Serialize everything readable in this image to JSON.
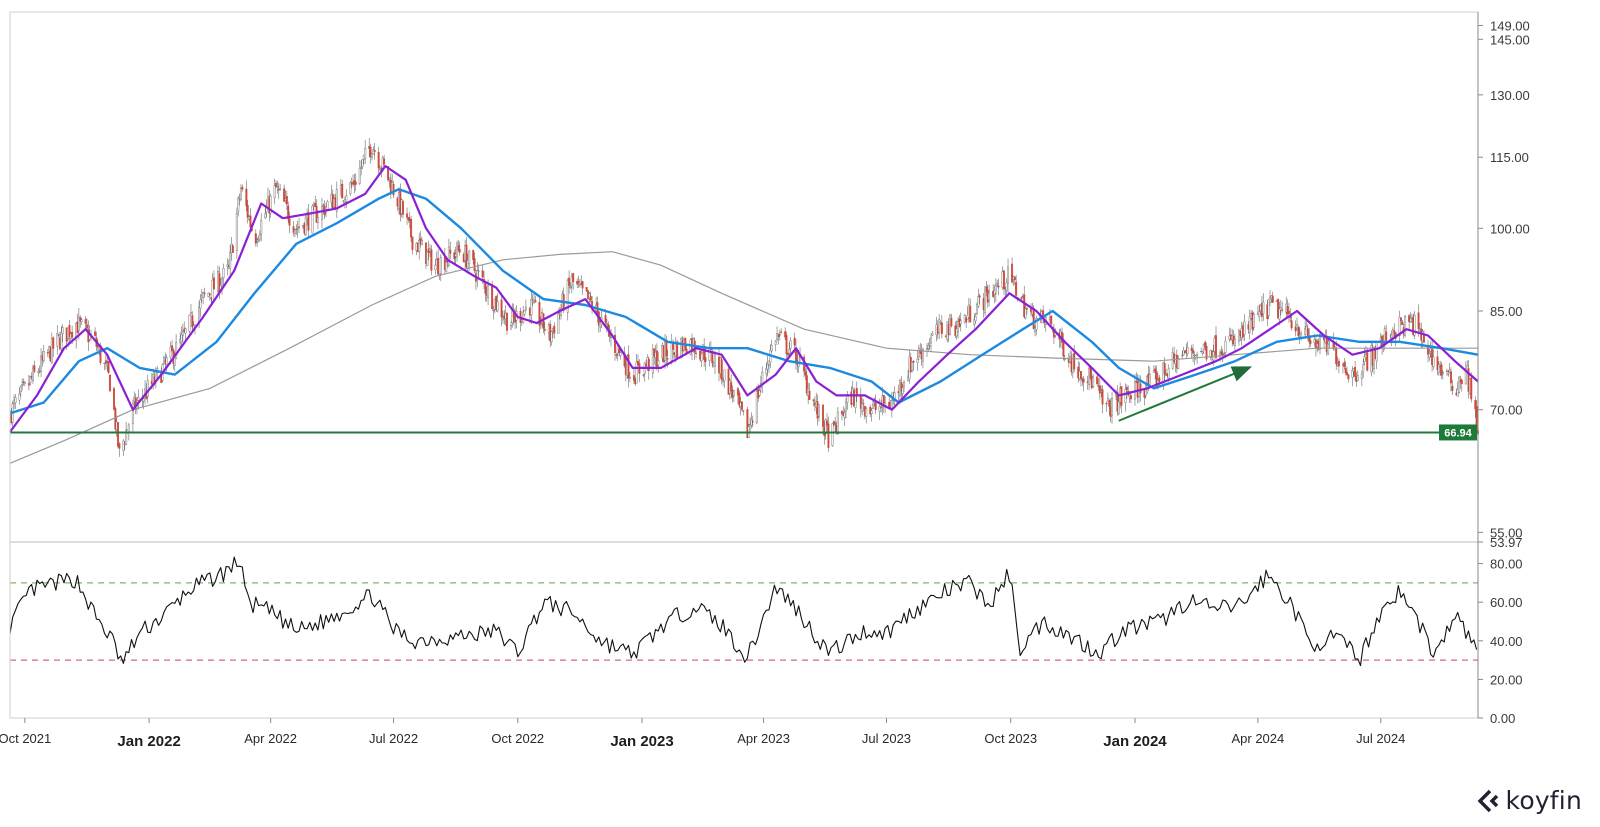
{
  "brand": {
    "name": "koyfin",
    "logo_icon": "koyfin-chevron-icon"
  },
  "colors": {
    "up_candle": "#f2f2f2",
    "down_candle": "#d04a3a",
    "wick": "#6a6a6a",
    "ma_fast": "#8b1fd3",
    "ma_mid": "#1c8ae0",
    "ma_slow": "#9a9a9a",
    "support": "#1f7a3a",
    "rsi": "#111111",
    "rsi_overbought": "#7cb86b",
    "rsi_oversold": "#d66a7c"
  },
  "chart_data": [
    {
      "type": "candlestick",
      "panel": "price",
      "scale": "log",
      "ylim": [
        53.97,
        153
      ],
      "y_ticks": [
        "149.00",
        "145.00",
        "130.00",
        "115.00",
        "100.00",
        "85.00",
        "70.00",
        "55.00",
        "53.97"
      ],
      "x_start": "2021-09-20",
      "x_end": "2024-09-11",
      "x_ticks": [
        {
          "label": "Oct 2021",
          "date": "2021-10-01",
          "major": false
        },
        {
          "label": "Jan 2022",
          "date": "2022-01-01",
          "major": true
        },
        {
          "label": "Apr 2022",
          "date": "2022-04-01",
          "major": false
        },
        {
          "label": "Jul 2022",
          "date": "2022-07-01",
          "major": false
        },
        {
          "label": "Oct 2022",
          "date": "2022-10-01",
          "major": false
        },
        {
          "label": "Jan 2023",
          "date": "2023-01-01",
          "major": true
        },
        {
          "label": "Apr 2023",
          "date": "2023-04-01",
          "major": false
        },
        {
          "label": "Jul 2023",
          "date": "2023-07-01",
          "major": false
        },
        {
          "label": "Oct 2023",
          "date": "2023-10-01",
          "major": false
        },
        {
          "label": "Jan 2024",
          "date": "2024-01-01",
          "major": true
        },
        {
          "label": "Apr 2024",
          "date": "2024-04-01",
          "major": false
        },
        {
          "label": "Jul 2024",
          "date": "2024-07-01",
          "major": false
        }
      ],
      "close_path": [
        [
          "2021-09-20",
          69.5
        ],
        [
          "2021-10-05",
          74
        ],
        [
          "2021-10-25",
          80
        ],
        [
          "2021-11-08",
          83
        ],
        [
          "2021-11-22",
          80
        ],
        [
          "2021-12-03",
          74
        ],
        [
          "2021-12-10",
          64
        ],
        [
          "2021-12-20",
          70
        ],
        [
          "2022-01-05",
          74
        ],
        [
          "2022-01-25",
          80
        ],
        [
          "2022-02-10",
          87
        ],
        [
          "2022-03-01",
          92
        ],
        [
          "2022-03-10",
          108
        ],
        [
          "2022-03-20",
          98
        ],
        [
          "2022-04-05",
          108
        ],
        [
          "2022-04-20",
          100
        ],
        [
          "2022-05-10",
          104
        ],
        [
          "2022-06-01",
          109
        ],
        [
          "2022-06-15",
          118
        ],
        [
          "2022-07-01",
          108
        ],
        [
          "2022-07-15",
          98
        ],
        [
          "2022-08-01",
          93
        ],
        [
          "2022-08-20",
          96
        ],
        [
          "2022-09-10",
          88
        ],
        [
          "2022-09-25",
          83
        ],
        [
          "2022-10-10",
          86
        ],
        [
          "2022-10-25",
          81
        ],
        [
          "2022-11-10",
          90
        ],
        [
          "2022-11-25",
          86
        ],
        [
          "2022-12-10",
          80
        ],
        [
          "2022-12-25",
          75
        ],
        [
          "2023-01-15",
          78
        ],
        [
          "2023-02-05",
          80
        ],
        [
          "2023-02-25",
          77
        ],
        [
          "2023-03-10",
          72
        ],
        [
          "2023-03-20",
          67
        ],
        [
          "2023-04-10",
          81
        ],
        [
          "2023-04-25",
          78
        ],
        [
          "2023-05-10",
          70
        ],
        [
          "2023-05-20",
          66
        ],
        [
          "2023-06-05",
          72
        ],
        [
          "2023-06-20",
          70
        ],
        [
          "2023-07-05",
          71
        ],
        [
          "2023-07-20",
          77
        ],
        [
          "2023-08-10",
          82
        ],
        [
          "2023-08-25",
          83
        ],
        [
          "2023-09-15",
          88
        ],
        [
          "2023-09-30",
          91
        ],
        [
          "2023-10-15",
          84
        ],
        [
          "2023-10-30",
          83
        ],
        [
          "2023-11-15",
          77
        ],
        [
          "2023-12-01",
          74
        ],
        [
          "2023-12-10",
          70
        ],
        [
          "2023-12-25",
          72
        ],
        [
          "2024-01-15",
          74
        ],
        [
          "2024-02-05",
          78
        ],
        [
          "2024-02-25",
          79
        ],
        [
          "2024-03-15",
          80
        ],
        [
          "2024-04-10",
          86
        ],
        [
          "2024-04-25",
          84
        ],
        [
          "2024-05-10",
          80
        ],
        [
          "2024-05-25",
          79
        ],
        [
          "2024-06-10",
          75
        ],
        [
          "2024-06-25",
          78
        ],
        [
          "2024-07-10",
          82
        ],
        [
          "2024-07-25",
          83
        ],
        [
          "2024-08-10",
          77
        ],
        [
          "2024-08-25",
          73
        ],
        [
          "2024-09-02",
          76
        ],
        [
          "2024-09-11",
          67
        ]
      ],
      "ma_fast": [
        [
          "2021-09-20",
          67
        ],
        [
          "2021-10-10",
          72
        ],
        [
          "2021-10-30",
          79
        ],
        [
          "2021-11-15",
          82
        ],
        [
          "2021-12-01",
          78
        ],
        [
          "2021-12-20",
          70
        ],
        [
          "2022-01-10",
          75
        ],
        [
          "2022-02-10",
          84
        ],
        [
          "2022-03-05",
          92
        ],
        [
          "2022-03-25",
          105
        ],
        [
          "2022-04-10",
          102
        ],
        [
          "2022-05-01",
          103
        ],
        [
          "2022-05-20",
          104
        ],
        [
          "2022-06-10",
          107
        ],
        [
          "2022-06-25",
          113
        ],
        [
          "2022-07-10",
          110
        ],
        [
          "2022-07-25",
          100
        ],
        [
          "2022-08-10",
          94
        ],
        [
          "2022-08-30",
          91
        ],
        [
          "2022-09-15",
          89
        ],
        [
          "2022-10-01",
          84
        ],
        [
          "2022-10-15",
          83
        ],
        [
          "2022-11-01",
          85
        ],
        [
          "2022-11-20",
          87
        ],
        [
          "2022-12-10",
          81
        ],
        [
          "2022-12-25",
          76
        ],
        [
          "2023-01-15",
          76
        ],
        [
          "2023-02-10",
          79
        ],
        [
          "2023-03-01",
          78
        ],
        [
          "2023-03-20",
          72
        ],
        [
          "2023-04-10",
          75
        ],
        [
          "2023-04-25",
          79
        ],
        [
          "2023-05-10",
          74
        ],
        [
          "2023-05-25",
          72
        ],
        [
          "2023-06-15",
          72
        ],
        [
          "2023-07-05",
          70
        ],
        [
          "2023-07-25",
          74
        ],
        [
          "2023-08-15",
          78
        ],
        [
          "2023-09-05",
          82
        ],
        [
          "2023-09-30",
          88
        ],
        [
          "2023-10-20",
          85
        ],
        [
          "2023-11-10",
          80
        ],
        [
          "2023-11-30",
          76
        ],
        [
          "2023-12-20",
          72
        ],
        [
          "2024-01-10",
          73
        ],
        [
          "2024-02-05",
          75
        ],
        [
          "2024-03-01",
          77
        ],
        [
          "2024-03-20",
          79
        ],
        [
          "2024-04-10",
          82
        ],
        [
          "2024-04-30",
          85
        ],
        [
          "2024-05-20",
          81
        ],
        [
          "2024-06-10",
          78
        ],
        [
          "2024-06-30",
          79
        ],
        [
          "2024-07-20",
          82
        ],
        [
          "2024-08-05",
          81
        ],
        [
          "2024-08-25",
          77
        ],
        [
          "2024-09-11",
          74
        ]
      ],
      "ma_mid": [
        [
          "2021-09-20",
          69.5
        ],
        [
          "2021-10-15",
          71
        ],
        [
          "2021-11-10",
          77
        ],
        [
          "2021-12-01",
          79
        ],
        [
          "2021-12-25",
          76
        ],
        [
          "2022-01-20",
          75
        ],
        [
          "2022-02-20",
          80
        ],
        [
          "2022-03-20",
          88
        ],
        [
          "2022-04-20",
          97
        ],
        [
          "2022-05-20",
          101
        ],
        [
          "2022-06-20",
          106
        ],
        [
          "2022-07-05",
          108
        ],
        [
          "2022-07-25",
          106
        ],
        [
          "2022-08-20",
          100
        ],
        [
          "2022-09-20",
          92
        ],
        [
          "2022-10-20",
          87
        ],
        [
          "2022-11-20",
          86
        ],
        [
          "2022-12-20",
          84
        ],
        [
          "2023-01-20",
          80
        ],
        [
          "2023-02-20",
          79
        ],
        [
          "2023-03-20",
          79
        ],
        [
          "2023-04-20",
          77
        ],
        [
          "2023-05-20",
          76
        ],
        [
          "2023-06-20",
          74
        ],
        [
          "2023-07-10",
          71
        ],
        [
          "2023-08-10",
          74
        ],
        [
          "2023-09-10",
          78
        ],
        [
          "2023-10-10",
          82
        ],
        [
          "2023-11-01",
          85
        ],
        [
          "2023-11-30",
          80
        ],
        [
          "2023-12-20",
          76
        ],
        [
          "2024-01-15",
          73
        ],
        [
          "2024-02-15",
          75
        ],
        [
          "2024-03-15",
          77
        ],
        [
          "2024-04-15",
          80
        ],
        [
          "2024-05-15",
          81
        ],
        [
          "2024-06-15",
          80
        ],
        [
          "2024-07-15",
          80
        ],
        [
          "2024-08-15",
          79
        ],
        [
          "2024-09-11",
          78
        ]
      ],
      "ma_slow": [
        [
          "2021-09-20",
          63
        ],
        [
          "2021-11-01",
          66
        ],
        [
          "2021-12-20",
          70
        ],
        [
          "2022-02-15",
          73
        ],
        [
          "2022-04-15",
          79
        ],
        [
          "2022-06-15",
          86
        ],
        [
          "2022-08-01",
          91
        ],
        [
          "2022-09-20",
          94
        ],
        [
          "2022-11-01",
          95
        ],
        [
          "2022-12-10",
          95.5
        ],
        [
          "2023-01-15",
          93
        ],
        [
          "2023-03-01",
          88
        ],
        [
          "2023-05-01",
          82
        ],
        [
          "2023-07-01",
          79
        ],
        [
          "2023-09-01",
          78
        ],
        [
          "2023-11-01",
          77.5
        ],
        [
          "2024-01-15",
          77
        ],
        [
          "2024-03-15",
          78
        ],
        [
          "2024-05-15",
          79
        ],
        [
          "2024-07-15",
          79
        ],
        [
          "2024-09-11",
          79
        ]
      ],
      "support_level": 66.94,
      "support_label": "66.94",
      "trend_arrow": {
        "from": [
          "2023-12-20",
          68.5
        ],
        "to": [
          "2024-03-25",
          76
        ]
      }
    },
    {
      "type": "line",
      "panel": "rsi",
      "ylim": [
        0,
        86
      ],
      "y_ticks": [
        "80.00",
        "60.00",
        "40.00",
        "20.00",
        "0.00"
      ],
      "overbought": 70,
      "oversold": 30,
      "values": [
        [
          "2021-09-20",
          48
        ],
        [
          "2021-10-05",
          66
        ],
        [
          "2021-10-25",
          70
        ],
        [
          "2021-11-08",
          72
        ],
        [
          "2021-11-22",
          53
        ],
        [
          "2021-12-05",
          40
        ],
        [
          "2021-12-12",
          28
        ],
        [
          "2021-12-25",
          44
        ],
        [
          "2022-01-10",
          52
        ],
        [
          "2022-02-01",
          67
        ],
        [
          "2022-02-25",
          75
        ],
        [
          "2022-03-10",
          82
        ],
        [
          "2022-03-15",
          60
        ],
        [
          "2022-04-01",
          55
        ],
        [
          "2022-04-20",
          45
        ],
        [
          "2022-05-10",
          50
        ],
        [
          "2022-06-01",
          58
        ],
        [
          "2022-06-15",
          64
        ],
        [
          "2022-07-01",
          46
        ],
        [
          "2022-07-15",
          40
        ],
        [
          "2022-08-15",
          42
        ],
        [
          "2022-09-15",
          45
        ],
        [
          "2022-10-01",
          34
        ],
        [
          "2022-10-20",
          60
        ],
        [
          "2022-11-10",
          55
        ],
        [
          "2022-12-01",
          40
        ],
        [
          "2022-12-25",
          33
        ],
        [
          "2023-01-20",
          50
        ],
        [
          "2023-02-10",
          58
        ],
        [
          "2023-03-01",
          48
        ],
        [
          "2023-03-20",
          31
        ],
        [
          "2023-04-10",
          68
        ],
        [
          "2023-04-25",
          57
        ],
        [
          "2023-05-10",
          42
        ],
        [
          "2023-05-20",
          34
        ],
        [
          "2023-06-15",
          45
        ],
        [
          "2023-07-01",
          44
        ],
        [
          "2023-07-20",
          55
        ],
        [
          "2023-08-15",
          66
        ],
        [
          "2023-09-01",
          70
        ],
        [
          "2023-09-15",
          58
        ],
        [
          "2023-09-30",
          75
        ],
        [
          "2023-10-08",
          36
        ],
        [
          "2023-10-25",
          50
        ],
        [
          "2023-11-15",
          42
        ],
        [
          "2023-12-05",
          34
        ],
        [
          "2023-12-25",
          46
        ],
        [
          "2024-01-20",
          50
        ],
        [
          "2024-02-10",
          61
        ],
        [
          "2024-03-01",
          56
        ],
        [
          "2024-03-20",
          59
        ],
        [
          "2024-04-08",
          74
        ],
        [
          "2024-04-25",
          60
        ],
        [
          "2024-05-10",
          38
        ],
        [
          "2024-05-30",
          42
        ],
        [
          "2024-06-15",
          30
        ],
        [
          "2024-07-01",
          55
        ],
        [
          "2024-07-15",
          66
        ],
        [
          "2024-08-01",
          46
        ],
        [
          "2024-08-10",
          32
        ],
        [
          "2024-08-25",
          53
        ],
        [
          "2024-09-05",
          42
        ],
        [
          "2024-09-11",
          31
        ]
      ]
    }
  ]
}
